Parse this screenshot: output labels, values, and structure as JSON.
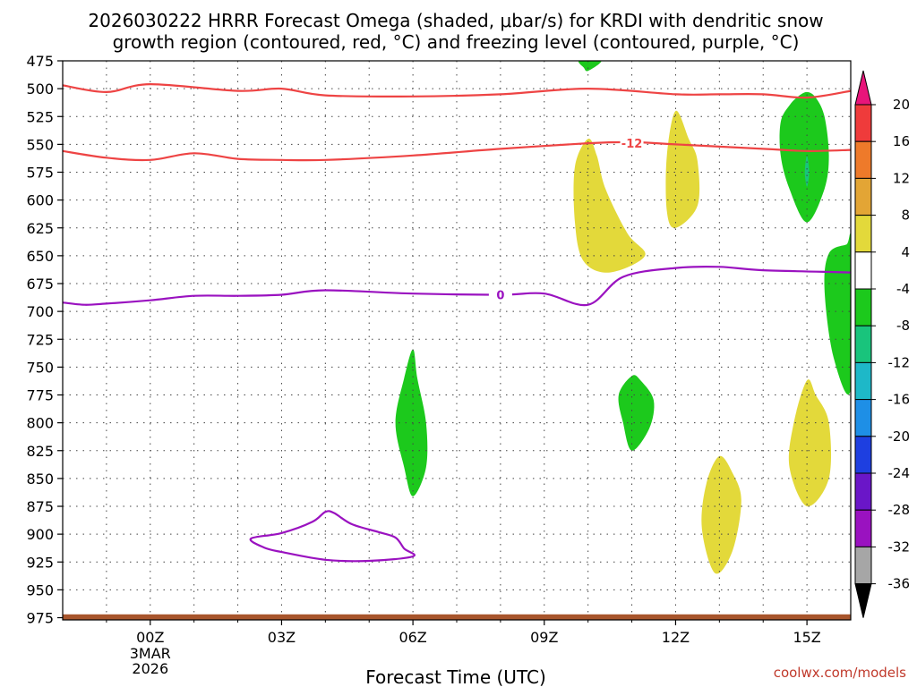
{
  "chart_data": {
    "type": "contour",
    "title_lines": [
      "2026030222 HRRR Forecast Omega (shaded, μbar/s) for KRDI with dendritic snow",
      "growth region (contoured, red, °C) and freezing level (contoured, purple, °C)"
    ],
    "xlabel": "Forecast Time (UTC)",
    "x_range_hours": [
      -2.0,
      16.0
    ],
    "y_range_mb": [
      475,
      977
    ],
    "x_ticks": [
      {
        "hour": 0,
        "label": "00Z",
        "sub": [
          "3MAR",
          "2026"
        ]
      },
      {
        "hour": 3,
        "label": "03Z",
        "sub": []
      },
      {
        "hour": 6,
        "label": "06Z",
        "sub": []
      },
      {
        "hour": 9,
        "label": "09Z",
        "sub": []
      },
      {
        "hour": 12,
        "label": "12Z",
        "sub": []
      },
      {
        "hour": 15,
        "label": "15Z",
        "sub": []
      }
    ],
    "y_ticks": [
      475,
      500,
      525,
      550,
      575,
      600,
      625,
      650,
      675,
      700,
      725,
      750,
      775,
      800,
      825,
      850,
      875,
      900,
      925,
      950,
      975
    ],
    "colorbar": {
      "levels": [
        "20",
        "16",
        "12",
        "8",
        "4",
        "-4",
        "-8",
        "-12",
        "-16",
        "-20",
        "-24",
        "-28",
        "-32",
        "-36"
      ],
      "colors": [
        "#e8157a",
        "#ef3b3b",
        "#ee7a2a",
        "#e3a535",
        "#e3d93a",
        "#ffffff",
        "#1cc91c",
        "#19c47c",
        "#1eb8c8",
        "#1e8fe6",
        "#1e3fe0",
        "#6a16c8",
        "#9a12c0",
        "#a6a6a6",
        "#000000"
      ]
    },
    "contours": [
      {
        "name": "dgz-top -18C",
        "color": "#ee4444",
        "label": "",
        "points": [
          [
            -2.0,
            497
          ],
          [
            -1.0,
            503
          ],
          [
            0.0,
            496
          ],
          [
            2.0,
            502
          ],
          [
            3.0,
            500
          ],
          [
            4.0,
            506
          ],
          [
            6.0,
            507
          ],
          [
            8.0,
            505
          ],
          [
            10.0,
            500
          ],
          [
            12.0,
            505
          ],
          [
            13.0,
            505
          ],
          [
            14.0,
            505
          ],
          [
            15.0,
            508
          ],
          [
            16.0,
            502
          ]
        ]
      },
      {
        "name": "dgz-bottom -12C",
        "color": "#ee4444",
        "label": "-12",
        "label_at": [
          11.0,
          549
        ],
        "points": [
          [
            -2.0,
            556
          ],
          [
            -1.0,
            562
          ],
          [
            0.0,
            564
          ],
          [
            1.0,
            558
          ],
          [
            2.0,
            563
          ],
          [
            3.0,
            564
          ],
          [
            4.0,
            564
          ],
          [
            6.0,
            560
          ],
          [
            8.0,
            554
          ],
          [
            10.0,
            549
          ],
          [
            11.0,
            548
          ],
          [
            12.0,
            550
          ],
          [
            14.0,
            554
          ],
          [
            15.0,
            556
          ],
          [
            16.0,
            555
          ]
        ]
      },
      {
        "name": "freezing level 0C",
        "color": "#9a12c0",
        "label": "0",
        "label_at": [
          8.0,
          685
        ],
        "points": [
          [
            -2.0,
            692
          ],
          [
            -1.5,
            694
          ],
          [
            -1.0,
            693
          ],
          [
            0.0,
            690
          ],
          [
            1.0,
            686
          ],
          [
            2.0,
            686
          ],
          [
            3.0,
            685
          ],
          [
            4.0,
            681
          ],
          [
            6.0,
            684
          ],
          [
            8.0,
            685
          ],
          [
            9.0,
            684
          ],
          [
            10.0,
            694
          ],
          [
            10.8,
            669
          ],
          [
            12.0,
            661
          ],
          [
            13.0,
            660
          ],
          [
            14.0,
            663
          ],
          [
            16.0,
            665
          ]
        ]
      },
      {
        "name": "near-surface 0C loop",
        "color": "#9a12c0",
        "label": "",
        "closed": true,
        "points": [
          [
            2.3,
            904
          ],
          [
            3.0,
            899
          ],
          [
            3.7,
            889
          ],
          [
            4.0,
            880
          ],
          [
            4.2,
            881
          ],
          [
            4.6,
            891
          ],
          [
            5.2,
            898
          ],
          [
            5.6,
            903
          ],
          [
            5.8,
            913
          ],
          [
            6.0,
            920
          ],
          [
            5.0,
            924
          ],
          [
            4.0,
            923
          ],
          [
            3.0,
            916
          ],
          [
            2.6,
            912
          ]
        ]
      }
    ],
    "shaded_regions": [
      {
        "omega": "-8",
        "color": "#1cc91c",
        "points": [
          [
            9.8,
            475
          ],
          [
            10.3,
            475
          ],
          [
            10.0,
            484
          ],
          [
            9.9,
            481
          ]
        ]
      },
      {
        "omega": "-8",
        "color": "#1cc91c",
        "points": [
          [
            15.0,
            503
          ],
          [
            14.8,
            507
          ],
          [
            14.6,
            515
          ],
          [
            14.4,
            530
          ],
          [
            14.4,
            560
          ],
          [
            14.6,
            590
          ],
          [
            15.0,
            620
          ],
          [
            15.4,
            590
          ],
          [
            15.5,
            560
          ],
          [
            15.4,
            525
          ],
          [
            15.2,
            508
          ]
        ]
      },
      {
        "omega": "-12",
        "color": "#19c47c",
        "points": [
          [
            15.0,
            560
          ],
          [
            14.95,
            575
          ],
          [
            15.0,
            588
          ],
          [
            15.05,
            575
          ]
        ]
      },
      {
        "omega": "-8",
        "color": "#1cc91c",
        "points": [
          [
            15.9,
            640
          ],
          [
            15.5,
            648
          ],
          [
            15.4,
            680
          ],
          [
            15.6,
            740
          ],
          [
            16.0,
            770
          ],
          [
            16.0,
            640
          ]
        ]
      },
      {
        "omega": "-8",
        "color": "#1cc91c",
        "points": [
          [
            6.0,
            734
          ],
          [
            5.8,
            760
          ],
          [
            5.6,
            800
          ],
          [
            5.8,
            840
          ],
          [
            6.0,
            866
          ],
          [
            6.3,
            840
          ],
          [
            6.3,
            800
          ],
          [
            6.1,
            760
          ]
        ]
      },
      {
        "omega": "-8",
        "color": "#1cc91c",
        "points": [
          [
            11.0,
            758
          ],
          [
            10.7,
            775
          ],
          [
            10.8,
            800
          ],
          [
            11.0,
            825
          ],
          [
            11.4,
            805
          ],
          [
            11.5,
            780
          ],
          [
            11.2,
            762
          ]
        ]
      },
      {
        "omega": "4",
        "color": "#e3d93a",
        "points": [
          [
            10.0,
            545
          ],
          [
            9.7,
            570
          ],
          [
            9.7,
            620
          ],
          [
            9.9,
            655
          ],
          [
            10.5,
            665
          ],
          [
            11.3,
            650
          ],
          [
            10.9,
            630
          ],
          [
            10.4,
            590
          ],
          [
            10.2,
            560
          ]
        ]
      },
      {
        "omega": "4",
        "color": "#e3d93a",
        "points": [
          [
            12.0,
            520
          ],
          [
            11.8,
            560
          ],
          [
            11.8,
            610
          ],
          [
            12.0,
            625
          ],
          [
            12.5,
            605
          ],
          [
            12.5,
            565
          ],
          [
            12.3,
            545
          ]
        ]
      },
      {
        "omega": "4",
        "color": "#e3d93a",
        "points": [
          [
            15.0,
            762
          ],
          [
            14.7,
            800
          ],
          [
            14.6,
            840
          ],
          [
            15.0,
            875
          ],
          [
            15.5,
            850
          ],
          [
            15.5,
            800
          ],
          [
            15.2,
            775
          ]
        ]
      },
      {
        "omega": "4",
        "color": "#e3d93a",
        "points": [
          [
            13.0,
            830
          ],
          [
            12.7,
            855
          ],
          [
            12.6,
            895
          ],
          [
            12.9,
            935
          ],
          [
            13.3,
            915
          ],
          [
            13.5,
            870
          ],
          [
            13.3,
            845
          ]
        ]
      }
    ],
    "ground": {
      "color": "#a8552c",
      "top_mb": 972
    }
  },
  "credit": "coolwx.com/models"
}
